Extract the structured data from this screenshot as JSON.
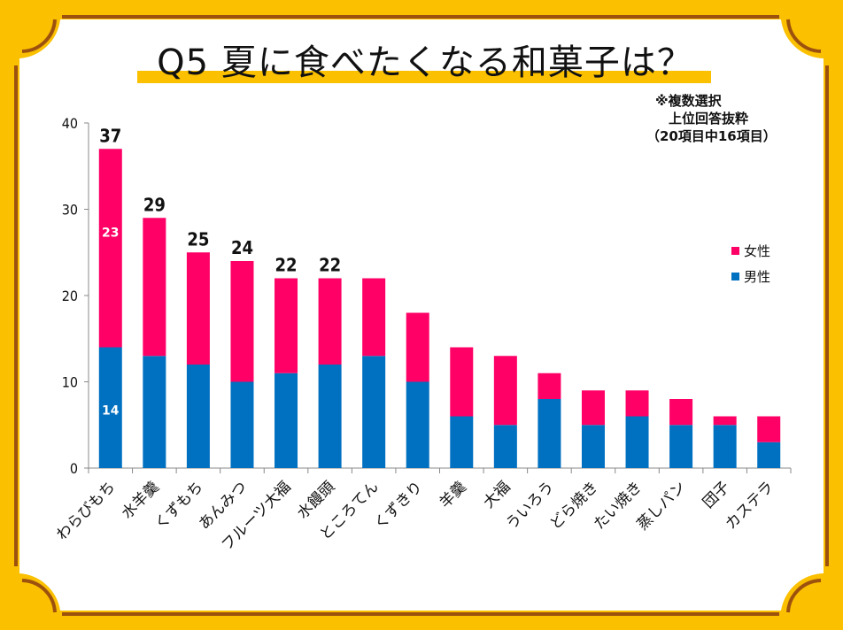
{
  "title": "Q5 夏に食べたくなる和菓子は？",
  "note": [
    "※複数選択",
    "上位回答抜粋",
    "（20項目中16項目）"
  ],
  "colors": {
    "frame": "#fbc000",
    "frame_line": "#9c520e",
    "female": "#ff0066",
    "male": "#0070c0",
    "axis": "#888888"
  },
  "chart_data": {
    "type": "bar",
    "stacked": true,
    "title": "Q5 夏に食べたくなる和菓子は？",
    "xlabel": "",
    "ylabel": "",
    "ylim": [
      0,
      40
    ],
    "yticks": [
      0,
      10,
      20,
      30,
      40
    ],
    "grid": false,
    "legend_position": "right",
    "categories": [
      "わらびもち",
      "水羊羹",
      "くずもち",
      "あんみつ",
      "フルーツ大福",
      "水饅頭",
      "ところてん",
      "くずきり",
      "羊羹",
      "大福",
      "ういろう",
      "どら焼き",
      "たい焼き",
      "蒸しパン",
      "団子",
      "カステラ"
    ],
    "series": [
      {
        "name": "男性",
        "color": "#0070c0",
        "values": [
          14,
          13,
          12,
          10,
          11,
          12,
          13,
          10,
          6,
          5,
          8,
          5,
          6,
          5,
          5,
          3
        ]
      },
      {
        "name": "女性",
        "color": "#ff0066",
        "values": [
          23,
          16,
          13,
          14,
          11,
          10,
          9,
          8,
          8,
          8,
          3,
          4,
          3,
          3,
          1,
          3
        ]
      }
    ],
    "total_labels": [
      {
        "category": "わらびもち",
        "value": "37"
      },
      {
        "category": "水羊羹",
        "value": "29"
      },
      {
        "category": "くずもち",
        "value": "25"
      },
      {
        "category": "あんみつ",
        "value": "24"
      },
      {
        "category": "フルーツ大福",
        "value": "22"
      },
      {
        "category": "水饅頭",
        "value": "22"
      }
    ],
    "inner_labels": [
      {
        "category": "わらびもち",
        "series": "女性",
        "value": "23"
      },
      {
        "category": "わらびもち",
        "series": "男性",
        "value": "14"
      }
    ]
  },
  "legend": [
    {
      "label": "女性",
      "color": "#ff0066"
    },
    {
      "label": "男性",
      "color": "#0070c0"
    }
  ]
}
